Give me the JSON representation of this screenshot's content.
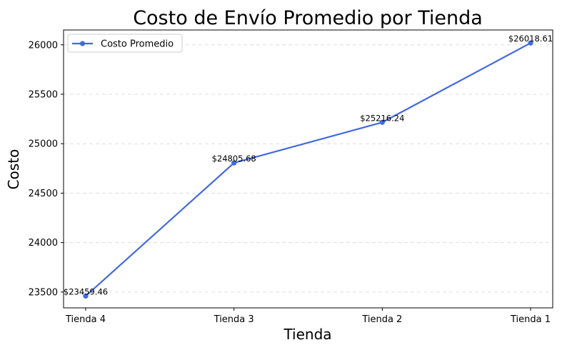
{
  "chart_data": {
    "type": "line",
    "title": "Costo de Envío Promedio por Tienda",
    "xlabel": "Tienda",
    "ylabel": "Costo",
    "categories": [
      "Tienda 4",
      "Tienda 3",
      "Tienda 2",
      "Tienda 1"
    ],
    "series": [
      {
        "name": "Costo Promedio",
        "values": [
          23459.46,
          24805.68,
          25216.24,
          26018.61
        ],
        "labels": [
          "$23459.46",
          "$24805.68",
          "$25216.24",
          "$26018.61"
        ],
        "color": "#4169e1"
      }
    ],
    "ylim": [
      23340,
      26150
    ],
    "yticks": [
      23500,
      24000,
      24500,
      25000,
      25500,
      26000
    ],
    "grid": "y-dashed",
    "legend_position": "top-left"
  }
}
